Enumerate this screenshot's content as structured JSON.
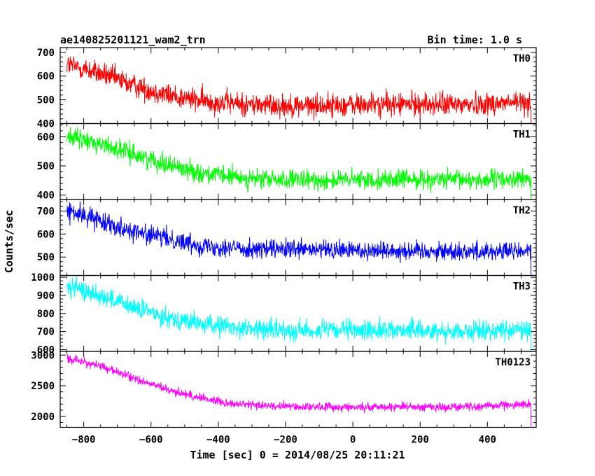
{
  "header": {
    "title": "ae140825201121_wam2_trn",
    "bin_time": "Bin time: 1.0 s"
  },
  "chart_data": {
    "type": "line",
    "xlabel": "Time [sec] 0 = 2014/08/25 20:11:21",
    "ylabel": "Counts/sec",
    "xlim": [
      -870,
      545
    ],
    "x_ticks": [
      -800,
      -600,
      -400,
      -200,
      0,
      200,
      400
    ],
    "x_tick_labels": [
      "−800",
      "−600",
      "−400",
      "−200",
      "0",
      "200",
      "400"
    ],
    "x_range_data": [
      -850,
      530
    ],
    "panels": [
      {
        "name": "TH0",
        "color": "#ff0000",
        "ylim": [
          400,
          720
        ],
        "y_ticks": [
          400,
          500,
          600,
          700
        ],
        "trend": [
          [
            -850,
            650
          ],
          [
            -750,
            610
          ],
          [
            -650,
            560
          ],
          [
            -550,
            520
          ],
          [
            -450,
            495
          ],
          [
            -300,
            480
          ],
          [
            -150,
            475
          ],
          [
            0,
            478
          ],
          [
            150,
            482
          ],
          [
            300,
            480
          ],
          [
            530,
            490
          ]
        ],
        "noise_amplitude": 45
      },
      {
        "name": "TH1",
        "color": "#00ff00",
        "ylim": [
          385,
          645
        ],
        "y_ticks": [
          400,
          500,
          600
        ],
        "trend": [
          [
            -850,
            600
          ],
          [
            -750,
            575
          ],
          [
            -650,
            540
          ],
          [
            -550,
            505
          ],
          [
            -450,
            475
          ],
          [
            -300,
            455
          ],
          [
            -150,
            450
          ],
          [
            0,
            452
          ],
          [
            150,
            455
          ],
          [
            300,
            452
          ],
          [
            530,
            455
          ]
        ],
        "noise_amplitude": 30
      },
      {
        "name": "TH2",
        "color": "#0000ff",
        "ylim": [
          420,
          750
        ],
        "y_ticks": [
          500,
          600,
          700
        ],
        "trend": [
          [
            -850,
            700
          ],
          [
            -750,
            660
          ],
          [
            -650,
            610
          ],
          [
            -550,
            580
          ],
          [
            -450,
            550
          ],
          [
            -300,
            535
          ],
          [
            -150,
            530
          ],
          [
            0,
            530
          ],
          [
            150,
            528
          ],
          [
            300,
            525
          ],
          [
            530,
            525
          ]
        ],
        "noise_amplitude": 38
      },
      {
        "name": "TH3",
        "color": "#00ffff",
        "ylim": [
          590,
          1010
        ],
        "y_ticks": [
          600,
          700,
          800,
          900,
          1000
        ],
        "trend": [
          [
            -850,
            950
          ],
          [
            -750,
            900
          ],
          [
            -650,
            830
          ],
          [
            -550,
            780
          ],
          [
            -450,
            740
          ],
          [
            -300,
            715
          ],
          [
            -150,
            705
          ],
          [
            0,
            705
          ],
          [
            150,
            710
          ],
          [
            300,
            700
          ],
          [
            530,
            710
          ]
        ],
        "noise_amplitude": 50
      },
      {
        "name": "TH0123",
        "color": "#ff00ff",
        "ylim": [
          1820,
          3060
        ],
        "y_ticks": [
          2000,
          2500,
          3000
        ],
        "trend": [
          [
            -850,
            2950
          ],
          [
            -750,
            2820
          ],
          [
            -650,
            2620
          ],
          [
            -550,
            2430
          ],
          [
            -450,
            2300
          ],
          [
            -350,
            2200
          ],
          [
            -200,
            2160
          ],
          [
            0,
            2150
          ],
          [
            150,
            2160
          ],
          [
            300,
            2150
          ],
          [
            530,
            2200
          ]
        ],
        "noise_amplitude": 65
      }
    ]
  }
}
